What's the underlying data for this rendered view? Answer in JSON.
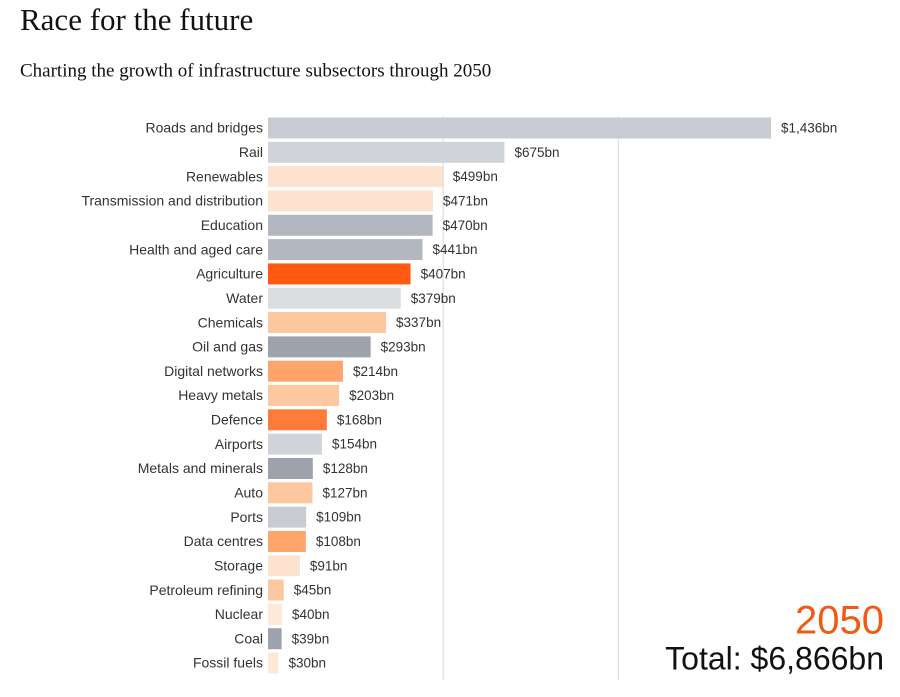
{
  "chart_data": {
    "type": "barh",
    "title": "Race for the future",
    "subtitle": "Charting the growth of infrastructure subsectors through 2050",
    "annotations": [
      "2050",
      "Total: $6,866bn"
    ],
    "categories": [
      "Roads and bridges",
      "Rail",
      "Renewables",
      "Transmission and distribution",
      "Education",
      "Health and aged care",
      "Agriculture",
      "Water",
      "Chemicals",
      "Oil and gas",
      "Digital networks",
      "Heavy metals",
      "Defence",
      "Airports",
      "Metals and minerals",
      "Auto",
      "Ports",
      "Data centres",
      "Storage",
      "Petroleum refining",
      "Nuclear",
      "Coal",
      "Fossil fuels"
    ],
    "values": [
      1436,
      675,
      499,
      471,
      470,
      441,
      407,
      379,
      337,
      293,
      214,
      203,
      168,
      154,
      128,
      127,
      109,
      108,
      91,
      45,
      40,
      39,
      30
    ],
    "value_labels": [
      "$1,436bn",
      "$675bn",
      "$499bn",
      "$471bn",
      "$470bn",
      "$441bn",
      "$407bn",
      "$379bn",
      "$337bn",
      "$293bn",
      "$214bn",
      "$203bn",
      "$168bn",
      "$154bn",
      "$128bn",
      "$127bn",
      "$109bn",
      "$108bn",
      "$91bn",
      "$45bn",
      "$40bn",
      "$39bn",
      "$30bn"
    ],
    "colors": [
      "#c9ccd3",
      "#d0d3d8",
      "#fde3cf",
      "#fde3cf",
      "#b3b7bf",
      "#b3b7bf",
      "#ff5a10",
      "#dcdde0",
      "#fdc8a0",
      "#9ea2ad",
      "#ffa46a",
      "#fdc8a0",
      "#ff7b3a",
      "#d0d3d8",
      "#9ea2ad",
      "#fdc8a0",
      "#c9ccd3",
      "#ffa46a",
      "#fde3cf",
      "#fdc8a0",
      "#fde9da",
      "#9ea2ad",
      "#fde9da"
    ],
    "xlim": [
      0,
      1800
    ],
    "xticks": [
      500,
      1000
    ],
    "grid": true,
    "annotation_color": "#f25a14"
  }
}
